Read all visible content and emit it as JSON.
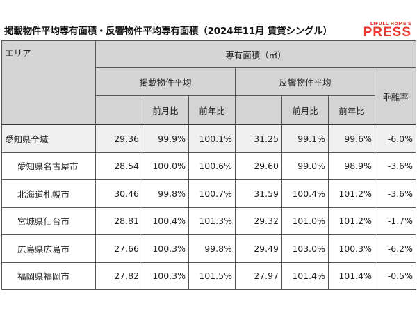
{
  "header": {
    "title": "掲載物件平均専有面積・反響物件平均専有面積（2024年11月 賃貸シングル）",
    "brand_top": "LIFULL HOME'S",
    "brand_main": "PRESS"
  },
  "table": {
    "area_header": "エリア",
    "group_header": "専有面積（㎡）",
    "listing_header": "掲載物件平均",
    "response_header": "反響物件平均",
    "divergence_header": "乖離率",
    "mom_header": "前月比",
    "yoy_header": "前年比",
    "rows": [
      {
        "area": "愛知県全域",
        "listing_avg": "29.36",
        "listing_mom": "99.9%",
        "listing_yoy": "100.1%",
        "response_avg": "31.25",
        "response_mom": "99.1%",
        "response_yoy": "99.6%",
        "divergence": "-6.0%"
      },
      {
        "area": "愛知県名古屋市",
        "listing_avg": "28.54",
        "listing_mom": "100.0%",
        "listing_yoy": "100.6%",
        "response_avg": "29.60",
        "response_mom": "99.0%",
        "response_yoy": "98.9%",
        "divergence": "-3.6%"
      },
      {
        "area": "北海道札幌市",
        "listing_avg": "30.46",
        "listing_mom": "99.8%",
        "listing_yoy": "100.7%",
        "response_avg": "31.59",
        "response_mom": "100.4%",
        "response_yoy": "101.2%",
        "divergence": "-3.6%"
      },
      {
        "area": "宮城県仙台市",
        "listing_avg": "28.81",
        "listing_mom": "100.4%",
        "listing_yoy": "101.3%",
        "response_avg": "29.32",
        "response_mom": "101.0%",
        "response_yoy": "101.2%",
        "divergence": "-1.7%"
      },
      {
        "area": "広島県広島市",
        "listing_avg": "27.66",
        "listing_mom": "100.3%",
        "listing_yoy": "99.8%",
        "response_avg": "29.49",
        "response_mom": "103.0%",
        "response_yoy": "100.3%",
        "divergence": "-6.2%"
      },
      {
        "area": "福岡県福岡市",
        "listing_avg": "27.82",
        "listing_mom": "100.3%",
        "listing_yoy": "101.5%",
        "response_avg": "27.97",
        "response_mom": "101.4%",
        "response_yoy": "101.4%",
        "divergence": "-0.5%"
      }
    ]
  },
  "colors": {
    "brand": "#e8382c",
    "header_bg": "#d4d4d4",
    "total_row_bg": "#f0f0f0"
  }
}
